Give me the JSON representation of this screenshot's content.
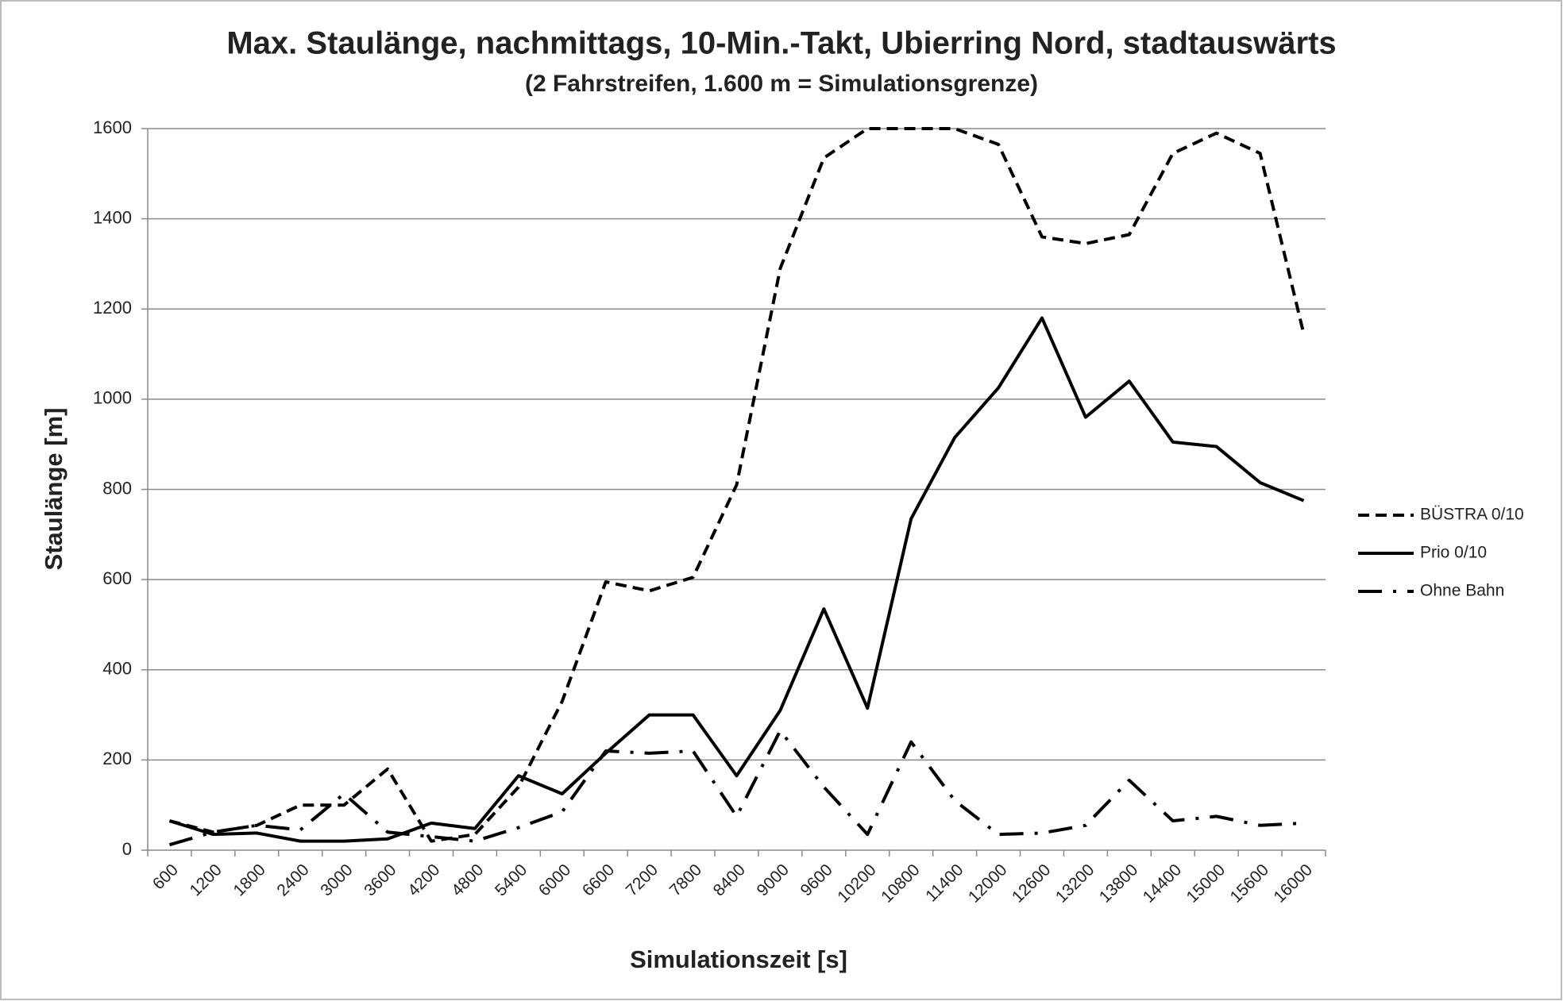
{
  "chart_data": {
    "type": "line",
    "title": "Max. Staulänge, nachmittags, 10-Min.-Takt, Ubierring Nord, stadtauswärts",
    "subtitle": "(2 Fahrstreifen,  1.600 m = Simulationsgrenze)",
    "x_label": "Simulationszeit  [s]",
    "y_label": "Staulänge  [m]",
    "categories": [
      "600",
      "1200",
      "1800",
      "2400",
      "3000",
      "3600",
      "4200",
      "4800",
      "5400",
      "6000",
      "6600",
      "7200",
      "7800",
      "8400",
      "9000",
      "9600",
      "10200",
      "10800",
      "11400",
      "12000",
      "12600",
      "13200",
      "13800",
      "14400",
      "15000",
      "15600",
      "16000"
    ],
    "series": [
      {
        "name": "BÜSTRA 0/10",
        "color": "#000000",
        "dash": "dashed",
        "values": [
          65,
          40,
          55,
          100,
          100,
          180,
          20,
          35,
          140,
          330,
          595,
          575,
          605,
          810,
          1290,
          1535,
          1600,
          1600,
          1600,
          1565,
          1360,
          1345,
          1365,
          1545,
          1590,
          1545,
          1145
        ]
      },
      {
        "name": "Prio 0/10",
        "color": "#000000",
        "dash": "solid",
        "values": [
          65,
          35,
          38,
          20,
          20,
          25,
          60,
          48,
          165,
          125,
          215,
          300,
          300,
          165,
          310,
          535,
          315,
          735,
          915,
          1025,
          1180,
          960,
          1040,
          905,
          895,
          815,
          775
        ]
      },
      {
        "name": "Ohne Bahn",
        "color": "#000000",
        "dash": "dashdot",
        "values": [
          12,
          40,
          55,
          45,
          125,
          40,
          30,
          20,
          50,
          85,
          220,
          215,
          220,
          75,
          265,
          140,
          35,
          240,
          110,
          35,
          38,
          55,
          155,
          65,
          75,
          55,
          60
        ]
      }
    ],
    "ylim": [
      0,
      1600
    ],
    "yticks": [
      0,
      200,
      400,
      600,
      800,
      1000,
      1200,
      1400,
      1600
    ],
    "grid": true,
    "legend": "right"
  }
}
